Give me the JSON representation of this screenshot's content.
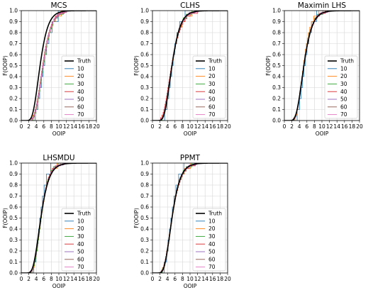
{
  "figure": {
    "xlabel": "OOIP",
    "ylabel": "F(OOIP)",
    "xticks": [
      0,
      2,
      4,
      6,
      8,
      10,
      12,
      14,
      16,
      18,
      20
    ],
    "yticks": [
      0.0,
      0.1,
      0.2,
      0.3,
      0.4,
      0.5,
      0.6,
      0.7,
      0.8,
      0.9,
      1.0
    ],
    "xlim": [
      0,
      20
    ],
    "ylim": [
      0,
      1
    ],
    "grid": true,
    "legend_placement": "lower-right"
  },
  "legend": [
    {
      "label": "Truth",
      "color": "#000000"
    },
    {
      "label": "10",
      "color": "#1f77b4"
    },
    {
      "label": "20",
      "color": "#ff7f0e"
    },
    {
      "label": "30",
      "color": "#2ca02c"
    },
    {
      "label": "40",
      "color": "#d62728"
    },
    {
      "label": "50",
      "color": "#9467bd"
    },
    {
      "label": "60",
      "color": "#8c564b"
    },
    {
      "label": "70",
      "color": "#e377c2"
    }
  ],
  "chart_data": [
    {
      "type": "line",
      "title": "MCS",
      "xlabel": "OOIP",
      "ylabel": "F(OOIP)",
      "xlim": [
        0,
        20
      ],
      "ylim": [
        0,
        1
      ],
      "truth": {
        "name": "Truth",
        "median": 5.0,
        "sigma": 0.33
      },
      "series": [
        {
          "name": "10",
          "n": 10,
          "median": 6.0,
          "sigma": 0.3
        },
        {
          "name": "20",
          "n": 20,
          "median": 5.8,
          "sigma": 0.31
        },
        {
          "name": "30",
          "n": 30,
          "median": 5.9,
          "sigma": 0.3
        },
        {
          "name": "40",
          "n": 40,
          "median": 5.7,
          "sigma": 0.31
        },
        {
          "name": "50",
          "n": 50,
          "median": 5.8,
          "sigma": 0.3
        },
        {
          "name": "60",
          "n": 60,
          "median": 5.75,
          "sigma": 0.31
        },
        {
          "name": "70",
          "n": 70,
          "median": 5.8,
          "sigma": 0.3
        }
      ]
    },
    {
      "type": "line",
      "title": "CLHS",
      "xlabel": "OOIP",
      "ylabel": "F(OOIP)",
      "xlim": [
        0,
        20
      ],
      "ylim": [
        0,
        1
      ],
      "truth": {
        "name": "Truth",
        "median": 5.2,
        "sigma": 0.33
      },
      "series": [
        {
          "name": "10",
          "n": 10,
          "median": 5.3,
          "sigma": 0.3
        },
        {
          "name": "20",
          "n": 20,
          "median": 5.2,
          "sigma": 0.36
        },
        {
          "name": "30",
          "n": 30,
          "median": 5.2,
          "sigma": 0.33
        },
        {
          "name": "40",
          "n": 40,
          "median": 5.1,
          "sigma": 0.38
        },
        {
          "name": "50",
          "n": 50,
          "median": 5.2,
          "sigma": 0.33
        },
        {
          "name": "60",
          "n": 60,
          "median": 5.2,
          "sigma": 0.33
        },
        {
          "name": "70",
          "n": 70,
          "median": 5.15,
          "sigma": 0.35
        }
      ]
    },
    {
      "type": "line",
      "title": "Maximin LHS",
      "xlabel": "OOIP",
      "ylabel": "F(OOIP)",
      "xlim": [
        0,
        20
      ],
      "ylim": [
        0,
        1
      ],
      "truth": {
        "name": "Truth",
        "median": 5.2,
        "sigma": 0.33
      },
      "series": [
        {
          "name": "10",
          "n": 10,
          "median": 5.4,
          "sigma": 0.28
        },
        {
          "name": "20",
          "n": 20,
          "median": 5.1,
          "sigma": 0.3
        },
        {
          "name": "30",
          "n": 30,
          "median": 5.2,
          "sigma": 0.32
        },
        {
          "name": "40",
          "n": 40,
          "median": 5.2,
          "sigma": 0.33
        },
        {
          "name": "50",
          "n": 50,
          "median": 5.25,
          "sigma": 0.32
        },
        {
          "name": "60",
          "n": 60,
          "median": 5.2,
          "sigma": 0.33
        },
        {
          "name": "70",
          "n": 70,
          "median": 5.2,
          "sigma": 0.33
        }
      ]
    },
    {
      "type": "line",
      "title": "LHSMDU",
      "xlabel": "OOIP",
      "ylabel": "F(OOIP)",
      "xlim": [
        0,
        20
      ],
      "ylim": [
        0,
        1
      ],
      "truth": {
        "name": "Truth",
        "median": 5.2,
        "sigma": 0.33
      },
      "series": [
        {
          "name": "10",
          "n": 10,
          "median": 5.1,
          "sigma": 0.26
        },
        {
          "name": "20",
          "n": 20,
          "median": 5.3,
          "sigma": 0.3
        },
        {
          "name": "30",
          "n": 30,
          "median": 5.3,
          "sigma": 0.29
        },
        {
          "name": "40",
          "n": 40,
          "median": 5.2,
          "sigma": 0.31
        },
        {
          "name": "50",
          "n": 50,
          "median": 5.2,
          "sigma": 0.32
        },
        {
          "name": "60",
          "n": 60,
          "median": 5.25,
          "sigma": 0.32
        },
        {
          "name": "70",
          "n": 70,
          "median": 5.2,
          "sigma": 0.32
        }
      ]
    },
    {
      "type": "line",
      "title": "PPMT",
      "xlabel": "OOIP",
      "ylabel": "F(OOIP)",
      "xlim": [
        0,
        20
      ],
      "ylim": [
        0,
        1
      ],
      "truth": {
        "name": "Truth",
        "median": 5.2,
        "sigma": 0.33
      },
      "series": [
        {
          "name": "10",
          "n": 10,
          "median": 5.1,
          "sigma": 0.3
        },
        {
          "name": "20",
          "n": 20,
          "median": 5.2,
          "sigma": 0.34
        },
        {
          "name": "30",
          "n": 30,
          "median": 5.2,
          "sigma": 0.33
        },
        {
          "name": "40",
          "n": 40,
          "median": 5.2,
          "sigma": 0.35
        },
        {
          "name": "50",
          "n": 50,
          "median": 5.2,
          "sigma": 0.33
        },
        {
          "name": "60",
          "n": 60,
          "median": 5.15,
          "sigma": 0.34
        },
        {
          "name": "70",
          "n": 70,
          "median": 5.2,
          "sigma": 0.33
        }
      ]
    }
  ]
}
